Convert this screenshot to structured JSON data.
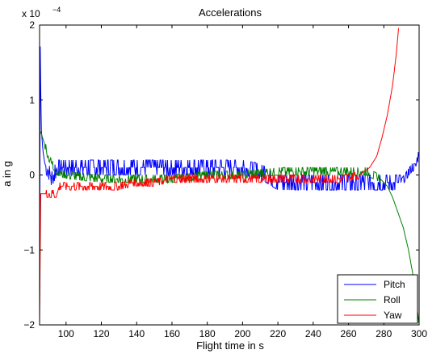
{
  "chart_data": {
    "type": "line",
    "title": "Accelerations",
    "xlabel": "Flight time in s",
    "ylabel": "a in g",
    "scale_exponent": "x 10",
    "scale_power": "−4",
    "xlim": [
      85,
      300
    ],
    "ylim": [
      -2,
      2
    ],
    "xticks": [
      100,
      120,
      140,
      160,
      180,
      200,
      220,
      240,
      260,
      280,
      300
    ],
    "yticks": [
      -2,
      -1,
      0,
      1,
      2
    ],
    "ytick_labels": [
      "−2",
      "−1",
      "0",
      "1",
      "2"
    ],
    "grid": false,
    "legend_position": "bottom-right",
    "series": [
      {
        "name": "Pitch",
        "color": "#0000ff",
        "band": "noisy ±0.1 around 0 from t=88 to 210, shifting to around -0.1 until 290",
        "points": [
          [
            85,
            -2
          ],
          [
            85.3,
            1.8
          ],
          [
            86,
            0.6
          ],
          [
            87,
            0.3
          ],
          [
            88,
            0.15
          ],
          [
            90,
            0.05
          ],
          [
            92,
            -0.05
          ],
          [
            95,
            0.1
          ],
          [
            100,
            0.1
          ],
          [
            120,
            0.1
          ],
          [
            140,
            0.1
          ],
          [
            160,
            0.1
          ],
          [
            180,
            0.1
          ],
          [
            200,
            0.1
          ],
          [
            210,
            0.05
          ],
          [
            220,
            -0.1
          ],
          [
            240,
            -0.1
          ],
          [
            260,
            -0.1
          ],
          [
            280,
            -0.1
          ],
          [
            290,
            -0.1
          ],
          [
            293,
            0.0
          ],
          [
            296,
            0.1
          ],
          [
            298,
            0.1
          ],
          [
            300,
            0.3
          ]
        ]
      },
      {
        "name": "Roll",
        "color": "#008000",
        "points": [
          [
            85,
            0.6
          ],
          [
            86,
            0.55
          ],
          [
            88,
            0.4
          ],
          [
            90,
            0.25
          ],
          [
            92,
            0.15
          ],
          [
            95,
            0.05
          ],
          [
            100,
            0.0
          ],
          [
            120,
            -0.05
          ],
          [
            140,
            -0.05
          ],
          [
            160,
            -0.05
          ],
          [
            180,
            0.0
          ],
          [
            200,
            0.0
          ],
          [
            220,
            0.05
          ],
          [
            240,
            0.05
          ],
          [
            260,
            0.05
          ],
          [
            270,
            0.05
          ],
          [
            278,
            -0.05
          ],
          [
            282,
            -0.15
          ],
          [
            285,
            -0.3
          ],
          [
            288,
            -0.5
          ],
          [
            291,
            -0.7
          ],
          [
            294,
            -1.0
          ],
          [
            297,
            -1.4
          ],
          [
            299,
            -1.8
          ],
          [
            300,
            -2.0
          ]
        ]
      },
      {
        "name": "Yaw",
        "color": "#ff0000",
        "points": [
          [
            85,
            -2
          ],
          [
            85.6,
            -0.25
          ],
          [
            88,
            -0.25
          ],
          [
            92,
            -0.25
          ],
          [
            95,
            -0.25
          ],
          [
            96,
            -0.15
          ],
          [
            110,
            -0.15
          ],
          [
            130,
            -0.15
          ],
          [
            138,
            -0.1
          ],
          [
            150,
            -0.1
          ],
          [
            160,
            -0.05
          ],
          [
            180,
            -0.05
          ],
          [
            200,
            -0.05
          ],
          [
            220,
            -0.05
          ],
          [
            240,
            -0.05
          ],
          [
            258,
            -0.05
          ],
          [
            266,
            0.0
          ],
          [
            272,
            0.1
          ],
          [
            276,
            0.25
          ],
          [
            279,
            0.5
          ],
          [
            282,
            0.8
          ],
          [
            285,
            1.2
          ],
          [
            287,
            1.6
          ],
          [
            288.5,
            2.0
          ]
        ]
      }
    ]
  }
}
